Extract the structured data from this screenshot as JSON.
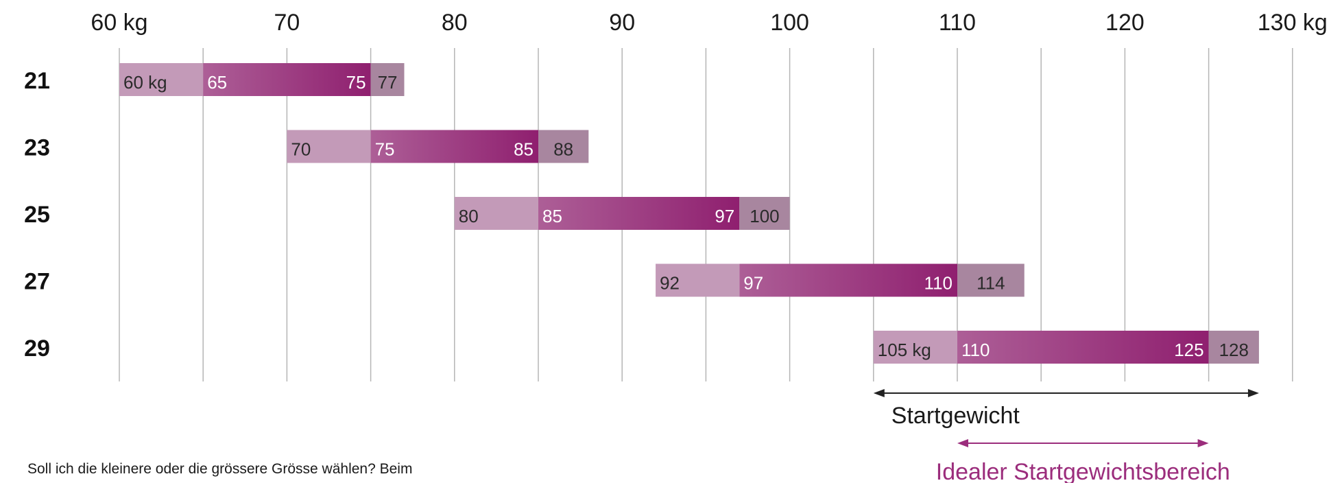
{
  "chart_data": {
    "type": "bar",
    "xlim": [
      60,
      130
    ],
    "x_ticks": [
      {
        "value": 60,
        "label": "60 kg"
      },
      {
        "value": 70,
        "label": "70"
      },
      {
        "value": 80,
        "label": "80"
      },
      {
        "value": 90,
        "label": "90"
      },
      {
        "value": 100,
        "label": "100"
      },
      {
        "value": 110,
        "label": "110"
      },
      {
        "value": 120,
        "label": "120"
      },
      {
        "value": 130,
        "label": "130 kg"
      }
    ],
    "gridlines_x": [
      60,
      65,
      70,
      75,
      80,
      85,
      90,
      95,
      100,
      105,
      110,
      115,
      120,
      125,
      130
    ],
    "rows": [
      {
        "label": "21",
        "start": 60,
        "ideal_start": 65,
        "ideal_end": 75,
        "end": 77,
        "labels": {
          "start": "60 kg",
          "ideal_start": "65",
          "ideal_end": "75",
          "end": "77"
        }
      },
      {
        "label": "23",
        "start": 70,
        "ideal_start": 75,
        "ideal_end": 85,
        "end": 88,
        "labels": {
          "start": "70",
          "ideal_start": "75",
          "ideal_end": "85",
          "end": "88"
        }
      },
      {
        "label": "25",
        "start": 80,
        "ideal_start": 85,
        "ideal_end": 97,
        "end": 100,
        "labels": {
          "start": "80",
          "ideal_start": "85",
          "ideal_end": "97",
          "end": "100"
        }
      },
      {
        "label": "27",
        "start": 92,
        "ideal_start": 97,
        "ideal_end": 110,
        "end": 114,
        "labels": {
          "start": "92",
          "ideal_start": "97",
          "ideal_end": "110",
          "end": "114"
        }
      },
      {
        "label": "29",
        "start": 105,
        "ideal_start": 110,
        "ideal_end": 125,
        "end": 128,
        "labels": {
          "start": "105 kg",
          "ideal_start": "110",
          "ideal_end": "125",
          "end": "128"
        }
      }
    ],
    "legend": {
      "start_weight": {
        "label": "Startgewicht",
        "from": 105,
        "to": 128
      },
      "ideal_range": {
        "label": "Idealer Startgewichtsbereich",
        "from": 110,
        "to": 125
      }
    },
    "colors": {
      "outer_left": "#c39ab8",
      "outer_right": "#a8869f",
      "ideal_light": "#ad5f97",
      "ideal_dark": "#8f1f6f",
      "ideal_text": "#9b2d7c",
      "grid": "#b5b5b5",
      "arrow": "#222222"
    }
  },
  "footnote": "Soll ich die kleinere oder die grössere Grösse wählen? Beim"
}
